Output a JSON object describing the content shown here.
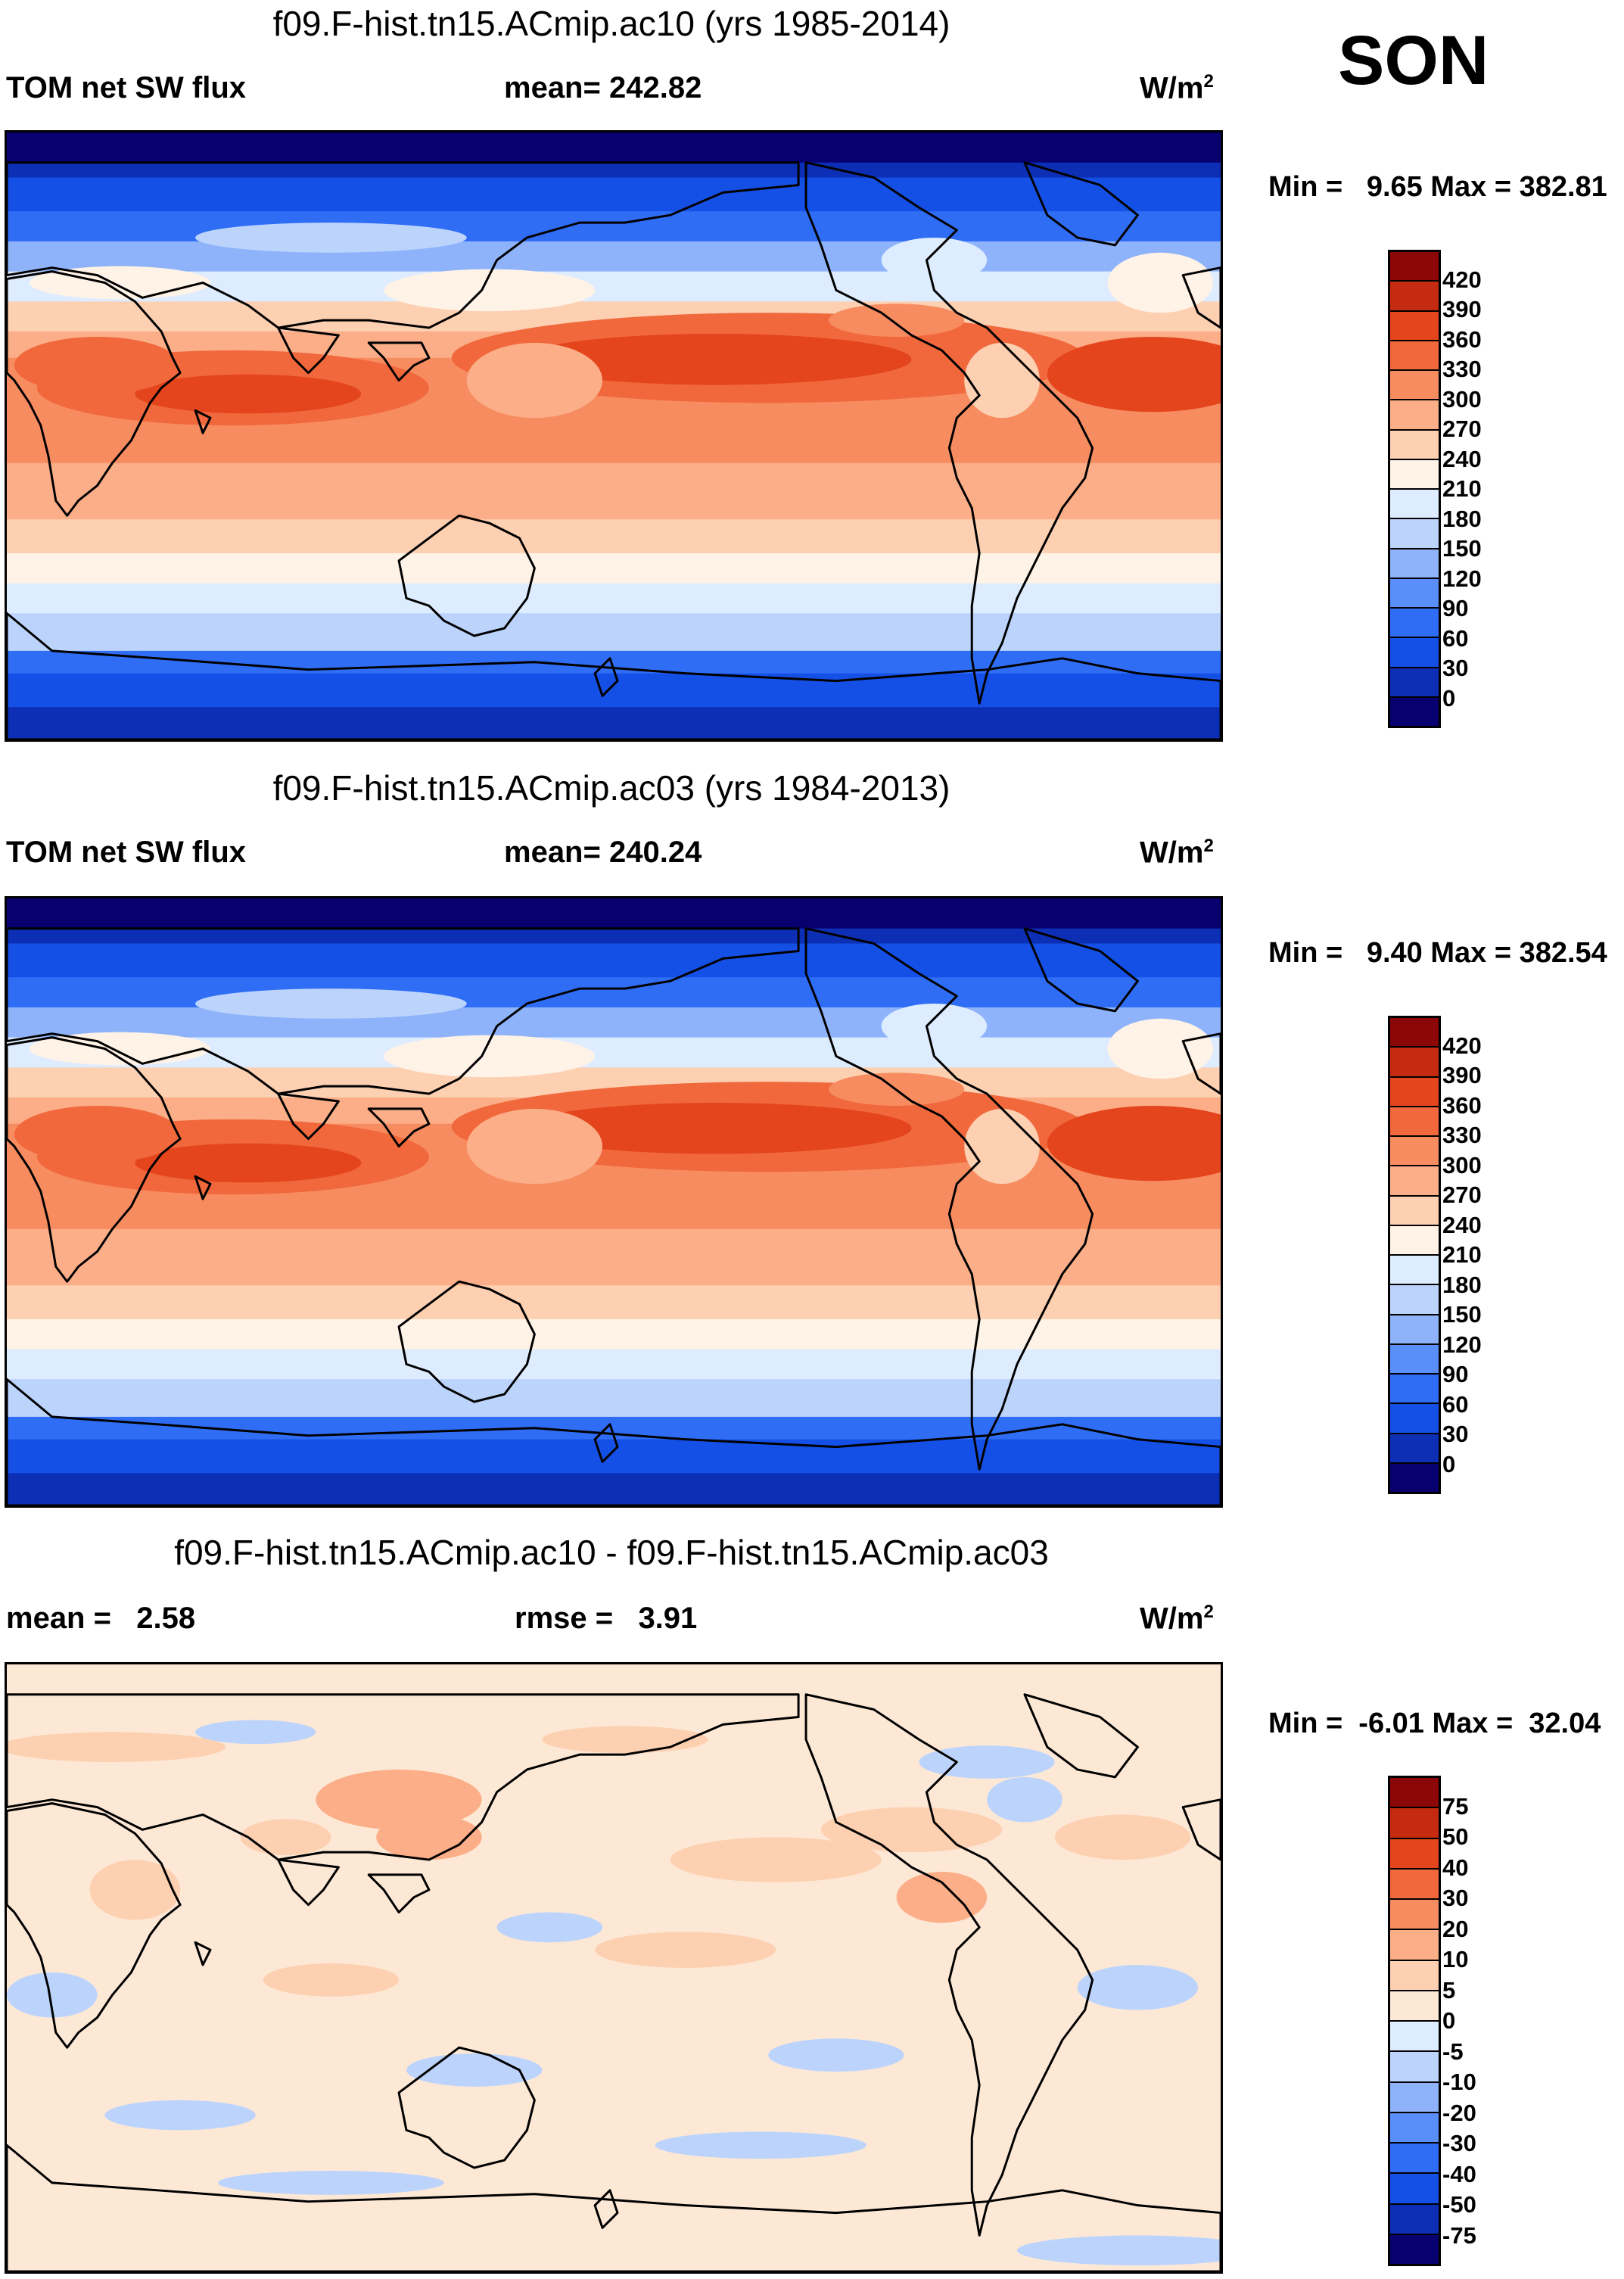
{
  "season": "SON",
  "units": "W/m",
  "units_exp": "2",
  "colors": {
    "flux_scale": [
      "#08006f",
      "#0c2fb5",
      "#1550e6",
      "#2f6df5",
      "#5a8ef8",
      "#8eb3fb",
      "#bcd4fc",
      "#deecff",
      "#fff2e6",
      "#fdd0b2",
      "#fbae88",
      "#f78c61",
      "#f1683c",
      "#e4451c",
      "#c42b10",
      "#8c0707"
    ],
    "diff_scale": [
      "#08006f",
      "#0c2fb5",
      "#1550e6",
      "#2f6df5",
      "#5a8ef8",
      "#8eb3fb",
      "#bcd4fc",
      "#deecff",
      "#fde8d6",
      "#fdd0b2",
      "#fbae88",
      "#f78c61",
      "#f1683c",
      "#e4451c",
      "#c42b10",
      "#8c0707"
    ],
    "land_outline": "#000000"
  },
  "chart_data": [
    {
      "type": "heatmap",
      "title": "f09.F-hist.tn15.ACmip.ac10 (yrs 1985-2014)",
      "variable": "TOM net SW flux",
      "mean_label": "mean= 242.82",
      "min_max_label": "Min =   9.65 Max = 382.81",
      "min": 9.65,
      "max": 382.81,
      "mean": 242.82,
      "colorbar_ticks": [
        "420",
        "390",
        "360",
        "330",
        "300",
        "270",
        "240",
        "210",
        "180",
        "150",
        "120",
        "90",
        "60",
        "30",
        "0"
      ]
    },
    {
      "type": "heatmap",
      "title": "f09.F-hist.tn15.ACmip.ac03 (yrs 1984-2013)",
      "variable": "TOM net SW flux",
      "mean_label": "mean= 240.24",
      "min_max_label": "Min =   9.40 Max = 382.54",
      "min": 9.4,
      "max": 382.54,
      "mean": 240.24,
      "colorbar_ticks": [
        "420",
        "390",
        "360",
        "330",
        "300",
        "270",
        "240",
        "210",
        "180",
        "150",
        "120",
        "90",
        "60",
        "30",
        "0"
      ]
    },
    {
      "type": "heatmap",
      "title": "f09.F-hist.tn15.ACmip.ac10 - f09.F-hist.tn15.ACmip.ac03",
      "mean_label": "mean =   2.58",
      "rmse_label": "rmse =   3.91",
      "min_max_label": "Min =  -6.01 Max =  32.04",
      "min": -6.01,
      "max": 32.04,
      "mean": 2.58,
      "rmse": 3.91,
      "colorbar_ticks": [
        "75",
        "50",
        "40",
        "30",
        "20",
        "10",
        "5",
        "0",
        "-5",
        "-10",
        "-20",
        "-30",
        "-40",
        "-50",
        "-75"
      ]
    }
  ]
}
